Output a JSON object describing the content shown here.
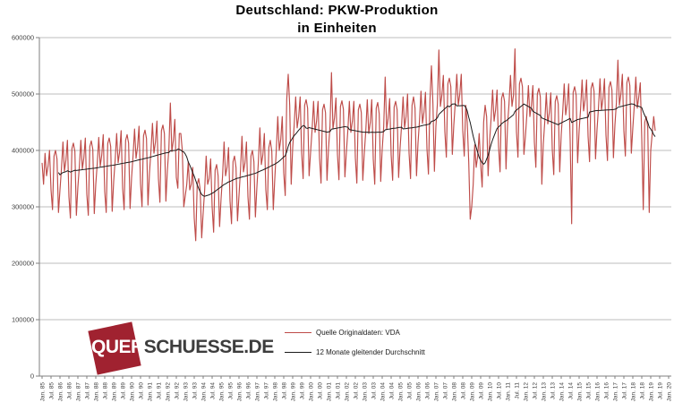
{
  "chart_data": {
    "type": "line",
    "title": "Deutschland: PKW-Produktion",
    "subtitle": "in Einheiten",
    "xlabel": "",
    "ylabel": "",
    "ylim": [
      0,
      600000
    ],
    "y_tick_labels": [
      "0",
      "100000",
      "200000",
      "300000",
      "400000",
      "500000",
      "600000"
    ],
    "grid": "horizontal-only",
    "legend_position": "inside-bottom-center",
    "x_months_start": "Jan 1985",
    "x_months_end": "Apr 2019",
    "months_per_tick": 6,
    "x_tick_labels": [
      "Jan. 85",
      "Jul. 85",
      "Jan. 86",
      "Jul. 86",
      "Jan. 87",
      "Jul. 87",
      "Jan. 88",
      "Jul. 88",
      "Jan. 89",
      "Jul. 89",
      "Jan. 90",
      "Jul. 90",
      "Jan. 91",
      "Jul. 91",
      "Jan. 92",
      "Jul. 92",
      "Jan. 93",
      "Jul. 93",
      "Jan. 94",
      "Jul. 94",
      "Jan. 95",
      "Jul. 95",
      "Jan. 96",
      "Jul. 96",
      "Jan. 97",
      "Jul. 97",
      "Jan. 98",
      "Jul. 98",
      "Jan. 99",
      "Jul. 99",
      "Jan. 00",
      "Jul. 00",
      "Jan. 01",
      "Jul. 01",
      "Jan. 02",
      "Jul. 02",
      "Jan. 03",
      "Jul. 03",
      "Jan. 04",
      "Jul. 04",
      "Jan. 05",
      "Jul. 05",
      "Jan. 06",
      "Jul. 06",
      "Jan. 07",
      "Jul. 07",
      "Jan. 08",
      "Jul. 08",
      "Jan. 09",
      "Jul. 09",
      "Jan. 10",
      "Jul. 10",
      "Jan. 11",
      "Jul. 11",
      "Jan. 12",
      "Jul. 12",
      "Jan. 13",
      "Jul. 13",
      "Jan. 14",
      "Jul. 14",
      "Jan. 15",
      "Jul. 15",
      "Jan. 16",
      "Jul. 16",
      "Jan. 17",
      "Jul. 17",
      "Jan. 18",
      "Jul. 18",
      "Jan. 19",
      "Jul. 19",
      "Jan. 20"
    ],
    "series": [
      {
        "name": "Quelle Originaldaten: VDA",
        "color": "#be4b48",
        "values": [
          378000,
          340000,
          395000,
          355000,
          372000,
          400000,
          330000,
          295000,
          390000,
          400000,
          385000,
          290000,
          330000,
          368000,
          415000,
          363000,
          383000,
          418000,
          318000,
          280000,
          403000,
          413000,
          398000,
          285000,
          335000,
          372000,
          418000,
          367000,
          387000,
          422000,
          322000,
          285000,
          407000,
          417000,
          402000,
          288000,
          340000,
          377000,
          423000,
          372000,
          392000,
          428000,
          327000,
          290000,
          412000,
          422000,
          407000,
          292000,
          345000,
          383000,
          430000,
          378000,
          398000,
          435000,
          333000,
          295000,
          418000,
          428000,
          413000,
          297000,
          352000,
          391000,
          438000,
          386000,
          406000,
          443000,
          341000,
          300000,
          426000,
          436000,
          421000,
          303000,
          360000,
          400000,
          448000,
          395000,
          415000,
          452000,
          350000,
          308000,
          435000,
          445000,
          430000,
          310000,
          365000,
          403000,
          484000,
          398000,
          418000,
          455000,
          352000,
          333000,
          430000,
          430000,
          400000,
          300000,
          320000,
          340000,
          380000,
          330000,
          340000,
          370000,
          280000,
          240000,
          340000,
          350000,
          330000,
          245000,
          290000,
          330000,
          390000,
          340000,
          350000,
          385000,
          300000,
          255000,
          365000,
          375000,
          355000,
          265000,
          315000,
          355000,
          415000,
          355000,
          370000,
          405000,
          310000,
          270000,
          380000,
          390000,
          370000,
          275000,
          320000,
          365000,
          425000,
          362000,
          378000,
          415000,
          318000,
          278000,
          390000,
          400000,
          380000,
          282000,
          335000,
          380000,
          440000,
          375000,
          392000,
          430000,
          330000,
          295000,
          405000,
          418000,
          398000,
          295000,
          350000,
          400000,
          460000,
          400000,
          420000,
          460000,
          360000,
          320000,
          490000,
          535000,
          480000,
          340000,
          405000,
          445000,
          495000,
          440000,
          460000,
          495000,
          395000,
          350000,
          480000,
          490000,
          475000,
          355000,
          397000,
          437000,
          487000,
          432000,
          452000,
          487000,
          387000,
          342000,
          472000,
          482000,
          467000,
          347000,
          403000,
          443000,
          538000,
          438000,
          458000,
          493000,
          393000,
          348000,
          478000,
          488000,
          473000,
          353000,
          397000,
          437000,
          487000,
          432000,
          452000,
          487000,
          387000,
          342000,
          472000,
          482000,
          467000,
          347000,
          395000,
          435000,
          490000,
          430000,
          450000,
          490000,
          385000,
          340000,
          475000,
          485000,
          465000,
          345000,
          402000,
          442000,
          530000,
          437000,
          457000,
          492000,
          392000,
          347000,
          477000,
          487000,
          472000,
          352000,
          405000,
          445000,
          495000,
          440000,
          460000,
          500000,
          395000,
          350000,
          480000,
          495000,
          475000,
          355000,
          413000,
          453000,
          505000,
          448000,
          468000,
          503000,
          403000,
          358000,
          488000,
          550000,
          483000,
          363000,
          443000,
          483000,
          578000,
          478000,
          498000,
          533000,
          433000,
          388000,
          518000,
          528000,
          513000,
          393000,
          445000,
          485000,
          535000,
          480000,
          500000,
          535000,
          435000,
          390000,
          480000,
          450000,
          380000,
          278000,
          300000,
          340000,
          410000,
          370000,
          390000,
          430000,
          375000,
          335000,
          450000,
          480000,
          460000,
          355000,
          417000,
          457000,
          507000,
          452000,
          472000,
          507000,
          407000,
          362000,
          492000,
          502000,
          487000,
          367000,
          443000,
          483000,
          533000,
          478000,
          498000,
          580000,
          433000,
          388000,
          518000,
          528000,
          513000,
          393000,
          425000,
          465000,
          515000,
          460000,
          480000,
          515000,
          415000,
          370000,
          500000,
          510000,
          495000,
          340000,
          412000,
          452000,
          502000,
          447000,
          467000,
          502000,
          402000,
          357000,
          487000,
          497000,
          482000,
          362000,
          428000,
          468000,
          518000,
          463000,
          483000,
          518000,
          418000,
          270000,
          503000,
          513000,
          498000,
          378000,
          435000,
          475000,
          525000,
          470000,
          490000,
          525000,
          425000,
          380000,
          510000,
          520000,
          505000,
          385000,
          437000,
          477000,
          527000,
          472000,
          492000,
          527000,
          427000,
          382000,
          512000,
          522000,
          507000,
          387000,
          445000,
          485000,
          560000,
          480000,
          500000,
          535000,
          435000,
          390000,
          520000,
          530000,
          515000,
          395000,
          440000,
          480000,
          530000,
          475000,
          495000,
          520000,
          420000,
          295000,
          450000,
          460000,
          440000,
          290000,
          400000,
          430000,
          460000,
          435000
        ]
      },
      {
        "name": "12 Monate gleitender Durchschnitt",
        "color": "#1a1a1a",
        "derived": "12-month trailing moving average of series 0"
      }
    ]
  },
  "logo": {
    "text_left": "QUER",
    "text_right": "SCHUESSE.DE",
    "square_color": "#a02230",
    "text_right_color": "#3d3d3d"
  }
}
